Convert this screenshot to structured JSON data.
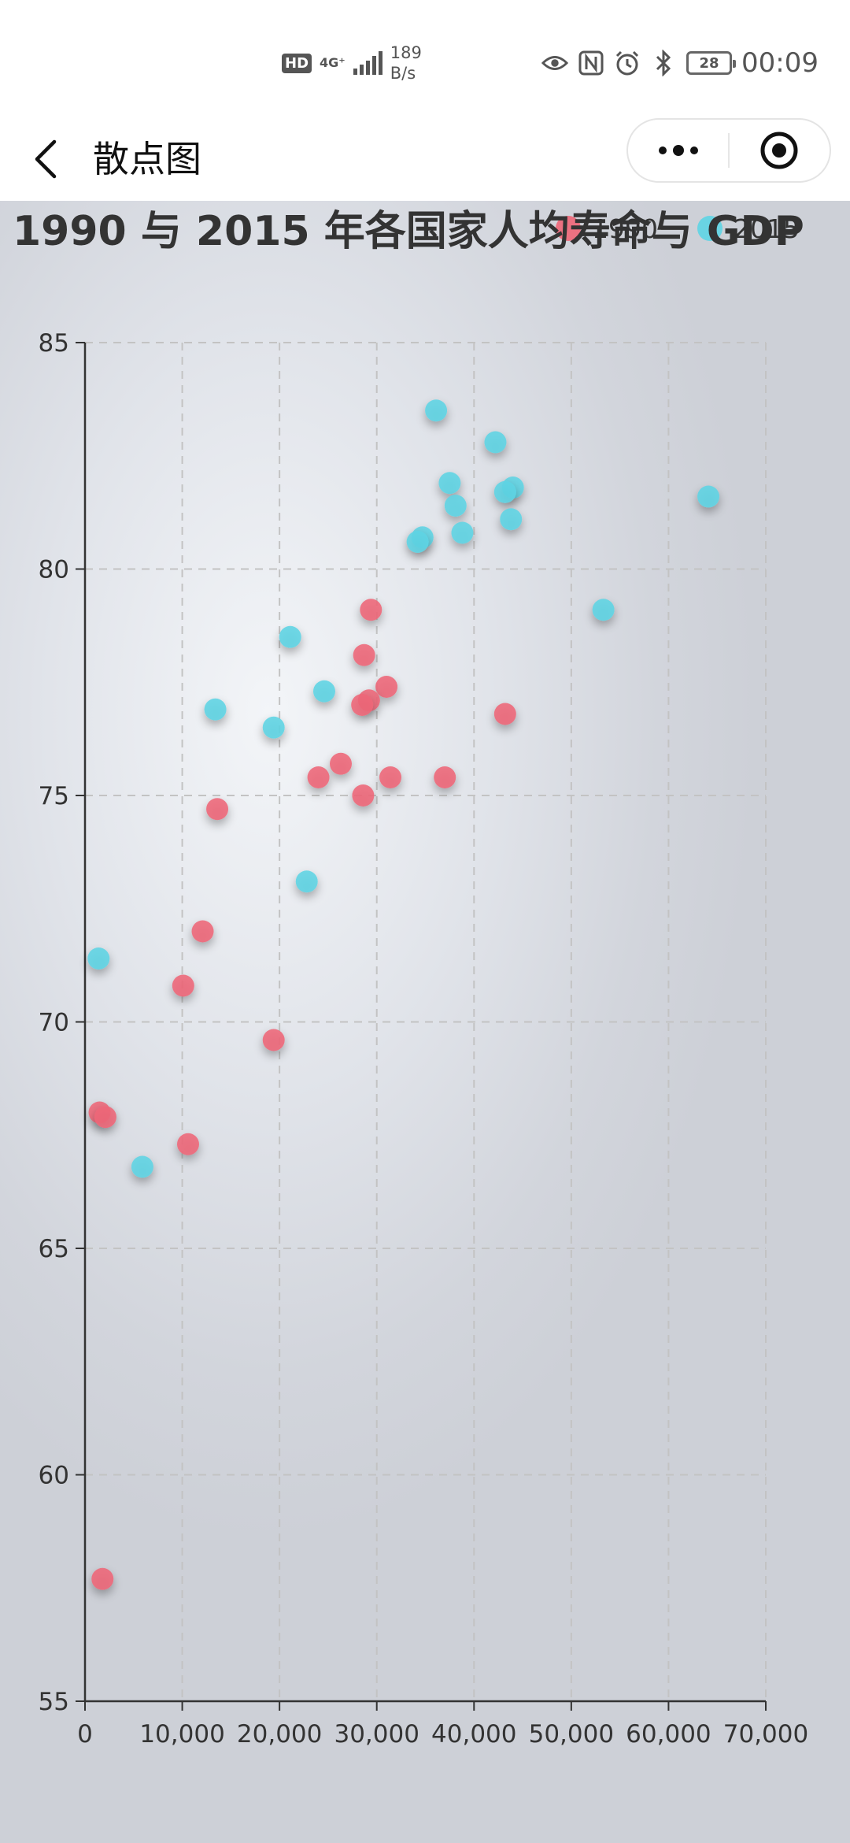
{
  "status_bar": {
    "hd_badge": "HD",
    "network": "4G⁺",
    "speed_value": "189",
    "speed_unit": "B/s",
    "battery_level": "28",
    "time": "00:09",
    "icons": [
      "eye-icon",
      "nfc-icon",
      "alarm-icon",
      "bluetooth-icon",
      "battery-icon"
    ]
  },
  "nav": {
    "back_icon": "chevron-left-icon",
    "title": "散点图",
    "more_icon": "more-dots-icon",
    "close_icon": "target-circle-icon"
  },
  "colors": {
    "series_1990": "#ee6677",
    "series_2015": "#5ed4e4",
    "axis": "#333333",
    "grid": "#c3c3c3"
  },
  "chart_data": {
    "type": "scatter",
    "title": "1990 与 2015 年各国家人均寿命与 GDP",
    "xlabel": "",
    "ylabel": "",
    "xlim": [
      0,
      70000
    ],
    "ylim": [
      55,
      85
    ],
    "x_ticks": [
      "0",
      "10,000",
      "20,000",
      "30,000",
      "40,000",
      "50,000",
      "60,000",
      "70,000"
    ],
    "y_ticks": [
      "55",
      "60",
      "65",
      "70",
      "75",
      "80",
      "85"
    ],
    "grid": true,
    "legend_position": "top-right",
    "series": [
      {
        "name": "1990",
        "color": "#ee6677",
        "points": [
          [
            29400,
            79.1
          ],
          [
            28700,
            78.1
          ],
          [
            31000,
            77.4
          ],
          [
            29200,
            77.1
          ],
          [
            28500,
            77.0
          ],
          [
            43200,
            76.8
          ],
          [
            26300,
            75.7
          ],
          [
            24000,
            75.4
          ],
          [
            31400,
            75.4
          ],
          [
            37000,
            75.4
          ],
          [
            28600,
            75.0
          ],
          [
            13600,
            74.7
          ],
          [
            12100,
            72.0
          ],
          [
            10100,
            70.8
          ],
          [
            19400,
            69.6
          ],
          [
            1500,
            68.0
          ],
          [
            2100,
            67.9
          ],
          [
            10600,
            67.3
          ],
          [
            1800,
            57.7
          ]
        ]
      },
      {
        "name": "2015",
        "color": "#5ed4e4",
        "points": [
          [
            36100,
            83.5
          ],
          [
            42200,
            82.8
          ],
          [
            37500,
            81.9
          ],
          [
            44000,
            81.8
          ],
          [
            43200,
            81.7
          ],
          [
            64100,
            81.6
          ],
          [
            38100,
            81.4
          ],
          [
            43800,
            81.1
          ],
          [
            38800,
            80.8
          ],
          [
            34700,
            80.7
          ],
          [
            34200,
            80.6
          ],
          [
            53300,
            79.1
          ],
          [
            21100,
            78.5
          ],
          [
            24600,
            77.3
          ],
          [
            13400,
            76.9
          ],
          [
            19400,
            76.5
          ],
          [
            22800,
            73.1
          ],
          [
            1400,
            71.4
          ],
          [
            5900,
            66.8
          ]
        ]
      }
    ]
  }
}
